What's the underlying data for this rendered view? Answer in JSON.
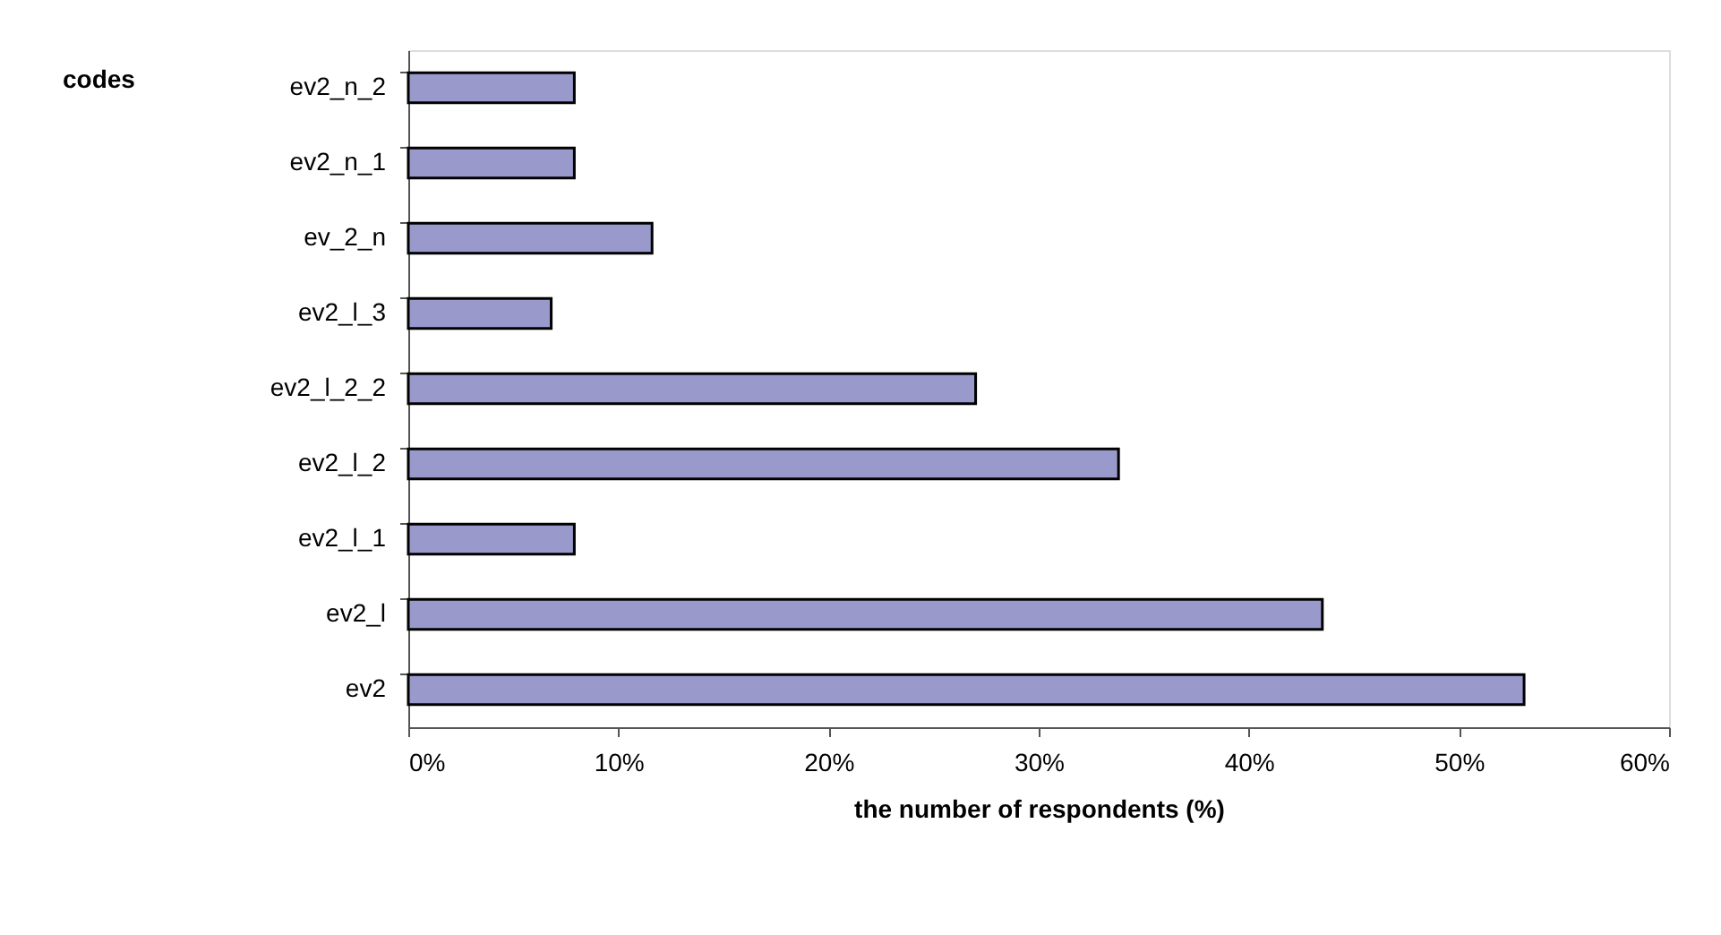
{
  "chart_data": {
    "type": "bar",
    "orientation": "horizontal",
    "xlabel": "the number of respondents (%)",
    "annotations": [
      "codes"
    ],
    "categories": [
      "ev2_n_2",
      "ev2_n_1",
      "ev_2_n",
      "ev2_l_3",
      "ev2_l_2_2",
      "ev2_l_2",
      "ev2_l_1",
      "ev2_l",
      "ev2"
    ],
    "values": [
      7.9,
      7.9,
      11.6,
      6.8,
      27.0,
      33.8,
      7.9,
      43.5,
      53.1
    ],
    "color": "#9999cc",
    "xlim": [
      0,
      60
    ],
    "xticks": [
      {
        "value": 0,
        "label": "0%"
      },
      {
        "value": 10,
        "label": "10%"
      },
      {
        "value": 20,
        "label": "20%"
      },
      {
        "value": 30,
        "label": "30%"
      },
      {
        "value": 40,
        "label": "40%"
      },
      {
        "value": 50,
        "label": "50%"
      },
      {
        "value": 60,
        "label": "60%"
      }
    ],
    "grid": false
  }
}
